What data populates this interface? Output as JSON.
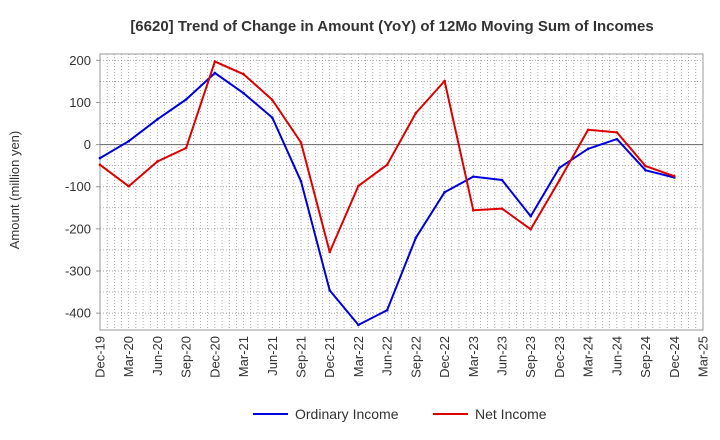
{
  "chart_data": {
    "type": "line",
    "title": "[6620]  Trend of Change in Amount (YoY) of 12Mo Moving Sum of Incomes",
    "xlabel": "",
    "ylabel": "Amount (million yen)",
    "ylim": [
      -440,
      215
    ],
    "yticks": [
      200,
      100,
      0,
      -100,
      -200,
      -300,
      -400
    ],
    "ytick_labels": [
      "200",
      "100",
      "0",
      "-100",
      "-200",
      "-300",
      "-400"
    ],
    "categories": [
      "Dec-19",
      "Mar-20",
      "Jun-20",
      "Sep-20",
      "Dec-20",
      "Mar-21",
      "Jun-21",
      "Sep-21",
      "Dec-21",
      "Mar-22",
      "Jun-22",
      "Sep-22",
      "Dec-22",
      "Mar-23",
      "Jun-23",
      "Sep-23",
      "Dec-23",
      "Mar-24",
      "Jun-24",
      "Sep-24",
      "Dec-24",
      "Mar-25"
    ],
    "grid": true,
    "legend_position": "bottom-center",
    "series": [
      {
        "name": "Ordinary Income",
        "color": "#0000dd",
        "values": [
          -32,
          8,
          60,
          107,
          170,
          122,
          64,
          -87,
          -346,
          -428,
          -393,
          -221,
          -113,
          -76,
          -84,
          -170,
          -55,
          -10,
          13,
          -61,
          -78,
          null
        ]
      },
      {
        "name": "Net Income",
        "color": "#dd0000",
        "values": [
          -48,
          -99,
          -40,
          -8,
          197,
          167,
          106,
          5,
          -255,
          -98,
          -48,
          75,
          151,
          -156,
          -152,
          -201,
          -85,
          35,
          29,
          -51,
          -75,
          null
        ]
      }
    ]
  }
}
